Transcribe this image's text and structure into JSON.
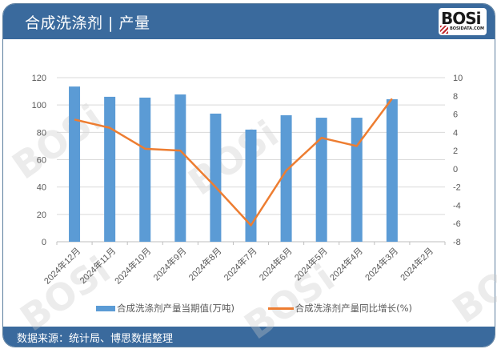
{
  "header": {
    "title": "合成洗涤剂 | 产量",
    "logo_text": "BOSi",
    "logo_sub": "BOSIDATA.COM"
  },
  "footer": {
    "source": "数据来源：统计局、博思数据整理"
  },
  "colors": {
    "header_bg": "#3a6a9d",
    "bar": "#5b9bd5",
    "line": "#ed7d31"
  },
  "legend": {
    "bar_label": "合成洗涤剂产量当期值(万吨)",
    "line_label": "合成洗涤剂产量同比增长(%)"
  },
  "chart_data": {
    "type": "bar+line",
    "title": "合成洗涤剂 | 产量",
    "categories": [
      "2024年12月",
      "2024年11月",
      "2024年10月",
      "2024年9月",
      "2024年8月",
      "2024年7月",
      "2024年6月",
      "2024年5月",
      "2024年4月",
      "2024年3月",
      "2024年2月"
    ],
    "series": [
      {
        "name": "合成洗涤剂产量当期值(万吨)",
        "type": "bar",
        "axis": "left",
        "values": [
          113.5,
          106.0,
          105.4,
          107.7,
          93.7,
          82.0,
          92.5,
          90.7,
          90.7,
          104.2,
          null
        ]
      },
      {
        "name": "合成洗涤剂产量同比增长(%)",
        "type": "line",
        "axis": "right",
        "values": [
          5.4,
          4.5,
          2.2,
          2.0,
          -2.0,
          -6.2,
          -0.2,
          3.4,
          2.5,
          7.7,
          null
        ]
      }
    ],
    "left_axis": {
      "min": 0,
      "max": 120,
      "ticks": [
        0,
        20,
        40,
        60,
        80,
        100,
        120
      ]
    },
    "right_axis": {
      "min": -8,
      "max": 10,
      "ticks": [
        -8,
        -6,
        -4,
        -2,
        0,
        2,
        4,
        6,
        8,
        10
      ]
    },
    "xlabel": "",
    "ylabel": "",
    "grid": true,
    "legend_position": "bottom"
  }
}
